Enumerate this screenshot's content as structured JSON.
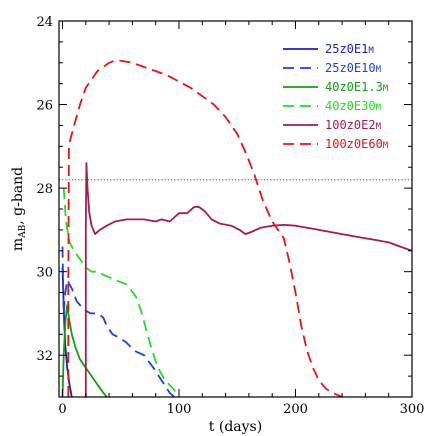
{
  "chart_data": {
    "type": "line",
    "xlabel": "t (days)",
    "ylabel_main": "m",
    "ylabel_sub": "AB",
    "ylabel_rest": ", g-band",
    "xlim": [
      -3,
      300
    ],
    "ylim": [
      33.0,
      24.0
    ],
    "y_inverted": true,
    "x_ticks": [
      0,
      100,
      200,
      300
    ],
    "x_tick_labels": [
      "0",
      "100",
      "200",
      "300"
    ],
    "y_ticks": [
      24,
      26,
      28,
      30,
      32
    ],
    "y_tick_labels": [
      "24",
      "26",
      "28",
      "30",
      "32"
    ],
    "x_minor_step": 20,
    "y_minor_step": 0.5,
    "grid": false,
    "legend_position": "top-right",
    "threshold_line": {
      "y": 27.8,
      "style": "dotted",
      "color": "#555555"
    },
    "series": [
      {
        "name": "25z0E1M",
        "color": "#1f1fb4",
        "dash": "solid",
        "points": [
          [
            0,
            29.9
          ],
          [
            0.7,
            30.5
          ],
          [
            1.5,
            31.2
          ],
          [
            2.5,
            31.8
          ],
          [
            4,
            32.3
          ],
          [
            6,
            32.7
          ],
          [
            8,
            33.0
          ]
        ]
      },
      {
        "name": "25z0E10M",
        "color": "#1f3fe0",
        "dash": "dashed",
        "points": [
          [
            0,
            29.4
          ],
          [
            0.5,
            30.3
          ],
          [
            1,
            31.0
          ],
          [
            2,
            30.6
          ],
          [
            4,
            30.2
          ],
          [
            8,
            30.4
          ],
          [
            12,
            30.7
          ],
          [
            18,
            30.9
          ],
          [
            24,
            31.0
          ],
          [
            30,
            31.0
          ],
          [
            35,
            31.1
          ],
          [
            38,
            31.3
          ],
          [
            43,
            31.5
          ],
          [
            50,
            31.6
          ],
          [
            55,
            31.7
          ],
          [
            62,
            31.9
          ],
          [
            70,
            32.0
          ],
          [
            78,
            32.3
          ],
          [
            85,
            32.6
          ],
          [
            92,
            32.9
          ],
          [
            96,
            33.0
          ]
        ]
      },
      {
        "name": "40z0E1.3M",
        "color": "#10a010",
        "dash": "solid",
        "points": [
          [
            0,
            33.0
          ],
          [
            1,
            32.0
          ],
          [
            2.5,
            31.2
          ],
          [
            4,
            30.8
          ],
          [
            5.5,
            31.1
          ],
          [
            8,
            31.5
          ],
          [
            11,
            31.8
          ],
          [
            15,
            32.1
          ],
          [
            20,
            32.3
          ],
          [
            25,
            32.5
          ],
          [
            30,
            32.7
          ],
          [
            35,
            32.9
          ],
          [
            38,
            33.0
          ]
        ]
      },
      {
        "name": "40z0E30M",
        "color": "#22dd22",
        "dash": "dashed",
        "points": [
          [
            1,
            28.0
          ],
          [
            3,
            28.8
          ],
          [
            6,
            29.3
          ],
          [
            10,
            29.5
          ],
          [
            15,
            29.7
          ],
          [
            20,
            29.9
          ],
          [
            25,
            30.0
          ],
          [
            30,
            30.0
          ],
          [
            37,
            30.1
          ],
          [
            45,
            30.2
          ],
          [
            55,
            30.3
          ],
          [
            63,
            30.6
          ],
          [
            67,
            30.9
          ],
          [
            72,
            31.4
          ],
          [
            77,
            31.9
          ],
          [
            82,
            32.3
          ],
          [
            88,
            32.6
          ],
          [
            95,
            32.8
          ],
          [
            100,
            33.0
          ]
        ]
      },
      {
        "name": "100z0E2M",
        "color": "#a31e4e",
        "dash": "solid",
        "points": [
          [
            20,
            33.0
          ],
          [
            20,
            29.0
          ],
          [
            20.5,
            27.4
          ],
          [
            21.5,
            28.0
          ],
          [
            23,
            28.6
          ],
          [
            25,
            28.9
          ],
          [
            28,
            29.1
          ],
          [
            32,
            29.0
          ],
          [
            38,
            28.9
          ],
          [
            45,
            28.8
          ],
          [
            55,
            28.75
          ],
          [
            70,
            28.75
          ],
          [
            80,
            28.8
          ],
          [
            85,
            28.75
          ],
          [
            92,
            28.8
          ],
          [
            100,
            28.6
          ],
          [
            107,
            28.6
          ],
          [
            113,
            28.45
          ],
          [
            117,
            28.45
          ],
          [
            122,
            28.55
          ],
          [
            128,
            28.75
          ],
          [
            135,
            28.85
          ],
          [
            145,
            28.9
          ],
          [
            152,
            29.0
          ],
          [
            157,
            29.1
          ],
          [
            162,
            29.05
          ],
          [
            170,
            28.95
          ],
          [
            180,
            28.9
          ],
          [
            190,
            28.88
          ],
          [
            200,
            28.9
          ],
          [
            210,
            28.95
          ],
          [
            220,
            29.0
          ],
          [
            230,
            29.05
          ],
          [
            240,
            29.1
          ],
          [
            250,
            29.15
          ],
          [
            260,
            29.2
          ],
          [
            270,
            29.25
          ],
          [
            280,
            29.3
          ],
          [
            290,
            29.4
          ],
          [
            300,
            29.5
          ]
        ]
      },
      {
        "name": "100z0E60M",
        "color": "#ee1111",
        "dash": "dashed",
        "points": [
          [
            5,
            33.0
          ],
          [
            5,
            30.3
          ],
          [
            5.5,
            27.0
          ],
          [
            7,
            26.8
          ],
          [
            10,
            26.5
          ],
          [
            15,
            26.0
          ],
          [
            20,
            25.6
          ],
          [
            25,
            25.4
          ],
          [
            30,
            25.2
          ],
          [
            35,
            25.1
          ],
          [
            40,
            25.0
          ],
          [
            45,
            24.95
          ],
          [
            50,
            24.95
          ],
          [
            60,
            25.0
          ],
          [
            70,
            25.1
          ],
          [
            80,
            25.2
          ],
          [
            90,
            25.3
          ],
          [
            100,
            25.45
          ],
          [
            110,
            25.6
          ],
          [
            120,
            25.8
          ],
          [
            130,
            26.0
          ],
          [
            140,
            26.3
          ],
          [
            150,
            26.7
          ],
          [
            158,
            27.2
          ],
          [
            165,
            27.7
          ],
          [
            172,
            28.3
          ],
          [
            180,
            28.8
          ],
          [
            185,
            29.0
          ],
          [
            190,
            29.2
          ],
          [
            195,
            29.8
          ],
          [
            200,
            30.5
          ],
          [
            205,
            31.3
          ],
          [
            210,
            31.9
          ],
          [
            215,
            32.3
          ],
          [
            220,
            32.6
          ],
          [
            226,
            32.8
          ],
          [
            232,
            32.9
          ],
          [
            240,
            33.0
          ]
        ]
      }
    ],
    "legend_entries": [
      {
        "prefix": "25z0E1",
        "suffix": "M",
        "color": "#1f1fb4",
        "dash": "solid"
      },
      {
        "prefix": "25z0E10",
        "suffix": "M",
        "color": "#1f3fe0",
        "dash": "dashed"
      },
      {
        "prefix": "40z0E1.3",
        "suffix": "M",
        "color": "#10a010",
        "dash": "solid"
      },
      {
        "prefix": "40z0E30",
        "suffix": "M",
        "color": "#22dd22",
        "dash": "dashed"
      },
      {
        "prefix": "100z0E2",
        "suffix": "M",
        "color": "#a31e4e",
        "dash": "solid"
      },
      {
        "prefix": "100z0E60",
        "suffix": "M",
        "color": "#ee1111",
        "dash": "dashed"
      }
    ]
  }
}
